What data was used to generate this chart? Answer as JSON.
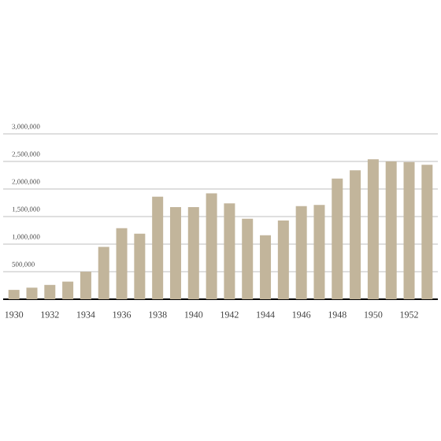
{
  "chart_data": {
    "type": "bar",
    "categories": [
      "1930",
      null,
      "1932",
      null,
      "1934",
      null,
      "1936",
      null,
      "1938",
      null,
      "1940",
      null,
      "1942",
      null,
      "1944",
      null,
      "1946",
      null,
      "1948",
      null,
      "1950",
      null,
      "1952",
      null
    ],
    "values": [
      170000,
      210000,
      260000,
      320000,
      500000,
      950000,
      1290000,
      1190000,
      1860000,
      1670000,
      1670000,
      1920000,
      1740000,
      1460000,
      1160000,
      1430000,
      1690000,
      1710000,
      2190000,
      2340000,
      2540000,
      2500000,
      2490000,
      2440000
    ],
    "color": "#c2b59b",
    "ylim": [
      0,
      3000000
    ],
    "yticks": [
      {
        "value": 500000,
        "label": "500,000"
      },
      {
        "value": 1000000,
        "label": "1,000,000"
      },
      {
        "value": 1500000,
        "label": "1,500,000"
      },
      {
        "value": 2000000,
        "label": "2,000,000"
      },
      {
        "value": 2500000,
        "label": "2,500,000"
      },
      {
        "value": 3000000,
        "label": "3,000,000"
      }
    ],
    "grid": "y"
  }
}
